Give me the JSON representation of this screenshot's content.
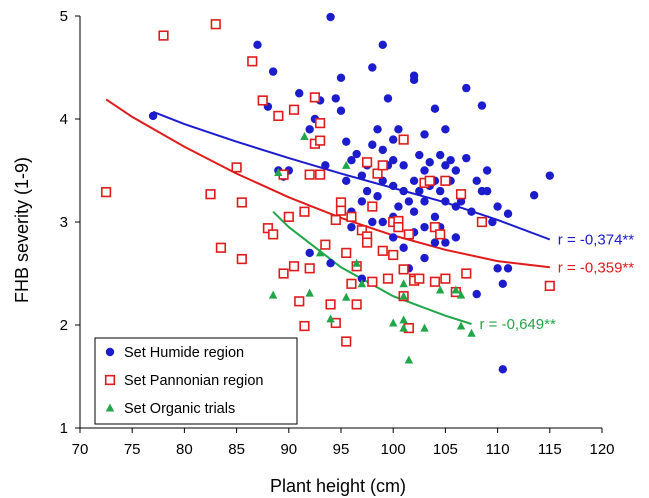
{
  "chart_data": {
    "type": "scatter",
    "title": "",
    "xlabel": "Plant height (cm)",
    "ylabel": "FHB severity (1-9)",
    "xlim": [
      70,
      120
    ],
    "ylim": [
      1,
      5
    ],
    "xticks": [
      "70",
      "75",
      "80",
      "85",
      "90",
      "95",
      "100",
      "105",
      "110",
      "115",
      "120"
    ],
    "yticks": [
      "1",
      "2",
      "3",
      "4",
      "5"
    ],
    "grid": false,
    "legend_position": "bottom-left",
    "series": [
      {
        "name": "Set Humide region",
        "marker": "circle",
        "color": "#1c1ccc",
        "trend_label": "r = -0,374**",
        "trend": [
          [
            77,
            4.07
          ],
          [
            80,
            3.95
          ],
          [
            85,
            3.78
          ],
          [
            90,
            3.62
          ],
          [
            95,
            3.47
          ],
          [
            100,
            3.33
          ],
          [
            105,
            3.19
          ],
          [
            110,
            3.02
          ],
          [
            115,
            2.83
          ]
        ],
        "points": [
          [
            77,
            4.03
          ],
          [
            87,
            4.72
          ],
          [
            88,
            4.12
          ],
          [
            88.5,
            4.46
          ],
          [
            89,
            3.5
          ],
          [
            89.5,
            3.44
          ],
          [
            90,
            3.5
          ],
          [
            91,
            4.25
          ],
          [
            92,
            3.9
          ],
          [
            92.5,
            4.0
          ],
          [
            93,
            4.18
          ],
          [
            93.5,
            3.55
          ],
          [
            94,
            4.99
          ],
          [
            94.5,
            4.2
          ],
          [
            95,
            4.4
          ],
          [
            95,
            4.08
          ],
          [
            95.5,
            3.78
          ],
          [
            95.5,
            3.4
          ],
          [
            96,
            3.6
          ],
          [
            96,
            3.1
          ],
          [
            96.5,
            3.66
          ],
          [
            97,
            3.45
          ],
          [
            97,
            3.2
          ],
          [
            97.5,
            3.55
          ],
          [
            97.5,
            3.3
          ],
          [
            98,
            4.5
          ],
          [
            98,
            3.75
          ],
          [
            98,
            3.0
          ],
          [
            98.5,
            3.9
          ],
          [
            98.5,
            3.25
          ],
          [
            99,
            4.72
          ],
          [
            99,
            3.7
          ],
          [
            99,
            3.4
          ],
          [
            99,
            3.0
          ],
          [
            99.5,
            4.2
          ],
          [
            99.5,
            3.55
          ],
          [
            100,
            3.8
          ],
          [
            100,
            3.6
          ],
          [
            100,
            3.35
          ],
          [
            100,
            3.05
          ],
          [
            100,
            2.85
          ],
          [
            100.5,
            3.9
          ],
          [
            100.5,
            3.15
          ],
          [
            101,
            3.55
          ],
          [
            101,
            3.3
          ],
          [
            101,
            2.75
          ],
          [
            101.5,
            3.2
          ],
          [
            101.5,
            2.55
          ],
          [
            102,
            4.42
          ],
          [
            102,
            4.38
          ],
          [
            102,
            3.4
          ],
          [
            102,
            3.1
          ],
          [
            102,
            2.9
          ],
          [
            102.5,
            3.65
          ],
          [
            102.5,
            3.3
          ],
          [
            103,
            3.85
          ],
          [
            103,
            3.5
          ],
          [
            103,
            3.2
          ],
          [
            103,
            2.95
          ],
          [
            103,
            2.65
          ],
          [
            103.5,
            3.58
          ],
          [
            103.5,
            3.35
          ],
          [
            104,
            4.1
          ],
          [
            104,
            3.4
          ],
          [
            104,
            3.05
          ],
          [
            104,
            2.8
          ],
          [
            104.5,
            3.65
          ],
          [
            104.5,
            3.3
          ],
          [
            104.5,
            2.95
          ],
          [
            105,
            3.9
          ],
          [
            105,
            3.55
          ],
          [
            105,
            3.2
          ],
          [
            105,
            2.8
          ],
          [
            105.5,
            3.6
          ],
          [
            105.5,
            3.4
          ],
          [
            106,
            3.5
          ],
          [
            106,
            3.15
          ],
          [
            106,
            2.85
          ],
          [
            106.5,
            3.2
          ],
          [
            107,
            4.3
          ],
          [
            107,
            3.62
          ],
          [
            107.5,
            3.1
          ],
          [
            108,
            3.4
          ],
          [
            108.5,
            4.13
          ],
          [
            108.5,
            3.3
          ],
          [
            109,
            3.5
          ],
          [
            109,
            3.3
          ],
          [
            109.5,
            3.0
          ],
          [
            110,
            3.15
          ],
          [
            110,
            2.55
          ],
          [
            110.5,
            2.4
          ],
          [
            110.5,
            1.57
          ],
          [
            111,
            3.08
          ],
          [
            111,
            2.55
          ],
          [
            113.5,
            3.26
          ],
          [
            115,
            3.45
          ],
          [
            108,
            2.3
          ],
          [
            92,
            2.7
          ],
          [
            96,
            2.95
          ],
          [
            97,
            2.45
          ],
          [
            94,
            2.6
          ]
        ]
      },
      {
        "name": "Set Pannonian region",
        "marker": "square",
        "color": "#e01b1b",
        "trend_label": "r = -0,359**",
        "trend": [
          [
            72.5,
            4.19
          ],
          [
            75,
            4.02
          ],
          [
            80,
            3.73
          ],
          [
            85,
            3.47
          ],
          [
            90,
            3.24
          ],
          [
            95,
            3.04
          ],
          [
            100,
            2.87
          ],
          [
            105,
            2.73
          ],
          [
            110,
            2.62
          ],
          [
            115,
            2.56
          ]
        ],
        "points": [
          [
            72.5,
            3.29
          ],
          [
            78,
            4.81
          ],
          [
            83,
            4.92
          ],
          [
            82.5,
            3.27
          ],
          [
            83.5,
            2.75
          ],
          [
            85,
            3.53
          ],
          [
            85.5,
            3.19
          ],
          [
            85.5,
            2.64
          ],
          [
            86.5,
            4.56
          ],
          [
            87.5,
            4.18
          ],
          [
            88,
            2.94
          ],
          [
            88.5,
            2.88
          ],
          [
            89,
            4.03
          ],
          [
            89.5,
            3.46
          ],
          [
            89.5,
            2.5
          ],
          [
            90,
            3.05
          ],
          [
            90.5,
            4.09
          ],
          [
            90.5,
            2.57
          ],
          [
            91,
            2.23
          ],
          [
            91.5,
            3.1
          ],
          [
            91.5,
            1.99
          ],
          [
            92,
            3.46
          ],
          [
            92,
            2.55
          ],
          [
            92.5,
            4.21
          ],
          [
            92.5,
            3.76
          ],
          [
            93,
            3.79
          ],
          [
            93,
            3.46
          ],
          [
            93,
            3.96
          ],
          [
            93.5,
            2.78
          ],
          [
            94,
            2.2
          ],
          [
            94.5,
            3.02
          ],
          [
            94.5,
            2.02
          ],
          [
            95,
            3.19
          ],
          [
            95,
            3.11
          ],
          [
            95.5,
            2.7
          ],
          [
            95.5,
            1.84
          ],
          [
            96,
            3.05
          ],
          [
            96,
            2.4
          ],
          [
            96.5,
            2.57
          ],
          [
            96.5,
            2.2
          ],
          [
            97,
            2.92
          ],
          [
            97.5,
            3.58
          ],
          [
            97.5,
            2.86
          ],
          [
            97.5,
            2.8
          ],
          [
            98,
            3.15
          ],
          [
            98,
            2.42
          ],
          [
            98.5,
            3.47
          ],
          [
            99,
            3.55
          ],
          [
            99,
            2.72
          ],
          [
            99.5,
            2.45
          ],
          [
            100,
            3.0
          ],
          [
            100,
            2.68
          ],
          [
            100.5,
            3.01
          ],
          [
            100.5,
            2.95
          ],
          [
            101,
            3.8
          ],
          [
            101,
            2.54
          ],
          [
            101,
            2.28
          ],
          [
            101.5,
            2.88
          ],
          [
            101.5,
            1.97
          ],
          [
            102,
            2.45
          ],
          [
            102,
            2.43
          ],
          [
            102.5,
            2.45
          ],
          [
            103,
            3.38
          ],
          [
            103.5,
            3.4
          ],
          [
            104,
            2.95
          ],
          [
            104,
            2.42
          ],
          [
            104.5,
            2.88
          ],
          [
            105,
            3.4
          ],
          [
            105,
            2.45
          ],
          [
            106,
            2.32
          ],
          [
            106.5,
            3.27
          ],
          [
            107,
            2.5
          ],
          [
            108.5,
            3.0
          ],
          [
            115,
            2.38
          ]
        ]
      },
      {
        "name": "Set Organic trials",
        "marker": "triangle",
        "color": "#21a64a",
        "trend_label": "r = -0,649**",
        "trend": [
          [
            88.5,
            3.1
          ],
          [
            90,
            2.95
          ],
          [
            95,
            2.56
          ],
          [
            100,
            2.28
          ],
          [
            105,
            2.09
          ],
          [
            107.5,
            2.01
          ]
        ],
        "points": [
          [
            88.5,
            2.29
          ],
          [
            89,
            3.48
          ],
          [
            91.5,
            3.83
          ],
          [
            92,
            2.31
          ],
          [
            93,
            2.7
          ],
          [
            94,
            2.06
          ],
          [
            95.5,
            3.55
          ],
          [
            95.5,
            2.27
          ],
          [
            96.5,
            2.6
          ],
          [
            97,
            2.4
          ],
          [
            100,
            2.02
          ],
          [
            101,
            2.05
          ],
          [
            101,
            1.97
          ],
          [
            101,
            2.4
          ],
          [
            101,
            2.28
          ],
          [
            101.5,
            1.66
          ],
          [
            103,
            1.97
          ],
          [
            104.5,
            2.34
          ],
          [
            106,
            2.34
          ],
          [
            106.5,
            1.99
          ],
          [
            106.5,
            2.29
          ],
          [
            107.5,
            1.92
          ]
        ]
      }
    ]
  }
}
